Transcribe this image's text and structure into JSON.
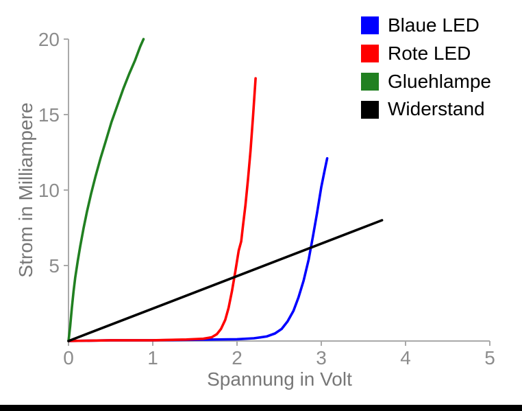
{
  "chart_data": {
    "type": "scatter",
    "title": "",
    "xlabel": "Spannung in Volt",
    "ylabel": "Strom in Milliampere",
    "xlim": [
      0,
      5
    ],
    "ylim": [
      0,
      20
    ],
    "xticks": [
      0,
      1,
      2,
      3,
      4,
      5
    ],
    "yticks": [
      5,
      10,
      15,
      20
    ],
    "grid": false,
    "legend_position": "top-right-inside",
    "axis_color": "#a9a9a9",
    "tick_label_color": "#8c8c8c",
    "axis_label_color": "#777777",
    "series": [
      {
        "id": "blaue-led",
        "name": "Blaue LED",
        "color": "#0000ff",
        "points": [
          [
            0,
            0
          ],
          [
            0.5,
            0.05
          ],
          [
            1.0,
            0.05
          ],
          [
            1.5,
            0.08
          ],
          [
            2.0,
            0.12
          ],
          [
            2.2,
            0.18
          ],
          [
            2.35,
            0.3
          ],
          [
            2.45,
            0.5
          ],
          [
            2.53,
            0.8
          ],
          [
            2.6,
            1.3
          ],
          [
            2.67,
            2.0
          ],
          [
            2.73,
            2.9
          ],
          [
            2.79,
            4.0
          ],
          [
            2.85,
            5.4
          ],
          [
            2.9,
            6.9
          ],
          [
            2.95,
            8.5
          ],
          [
            3.0,
            10.2
          ],
          [
            3.04,
            11.3
          ],
          [
            3.07,
            12.1
          ]
        ]
      },
      {
        "id": "rote-led",
        "name": "Rote LED",
        "color": "#ff0000",
        "points": [
          [
            0,
            0
          ],
          [
            0.5,
            0.05
          ],
          [
            1.0,
            0.05
          ],
          [
            1.4,
            0.1
          ],
          [
            1.6,
            0.15
          ],
          [
            1.7,
            0.25
          ],
          [
            1.76,
            0.45
          ],
          [
            1.81,
            0.8
          ],
          [
            1.86,
            1.4
          ],
          [
            1.9,
            2.2
          ],
          [
            1.94,
            3.3
          ],
          [
            1.98,
            4.6
          ],
          [
            2.02,
            6.0
          ],
          [
            2.05,
            6.6
          ],
          [
            2.07,
            7.6
          ],
          [
            2.1,
            9.0
          ],
          [
            2.13,
            10.7
          ],
          [
            2.16,
            12.6
          ],
          [
            2.19,
            14.9
          ],
          [
            2.22,
            17.4
          ]
        ]
      },
      {
        "id": "gluehlampe",
        "name": "Gluehlampe",
        "color": "#218021",
        "points": [
          [
            0,
            0
          ],
          [
            0.02,
            1.0
          ],
          [
            0.04,
            2.2
          ],
          [
            0.06,
            3.3
          ],
          [
            0.08,
            4.2
          ],
          [
            0.11,
            5.3
          ],
          [
            0.14,
            6.3
          ],
          [
            0.18,
            7.5
          ],
          [
            0.22,
            8.6
          ],
          [
            0.27,
            9.8
          ],
          [
            0.32,
            10.9
          ],
          [
            0.38,
            12.1
          ],
          [
            0.44,
            13.2
          ],
          [
            0.51,
            14.5
          ],
          [
            0.58,
            15.6
          ],
          [
            0.65,
            16.7
          ],
          [
            0.72,
            17.7
          ],
          [
            0.79,
            18.6
          ],
          [
            0.85,
            19.5
          ],
          [
            0.89,
            20.0
          ]
        ]
      },
      {
        "id": "widerstand",
        "name": "Widerstand",
        "color": "#000000",
        "points": [
          [
            0,
            0
          ],
          [
            3.72,
            8.0
          ]
        ]
      }
    ]
  }
}
